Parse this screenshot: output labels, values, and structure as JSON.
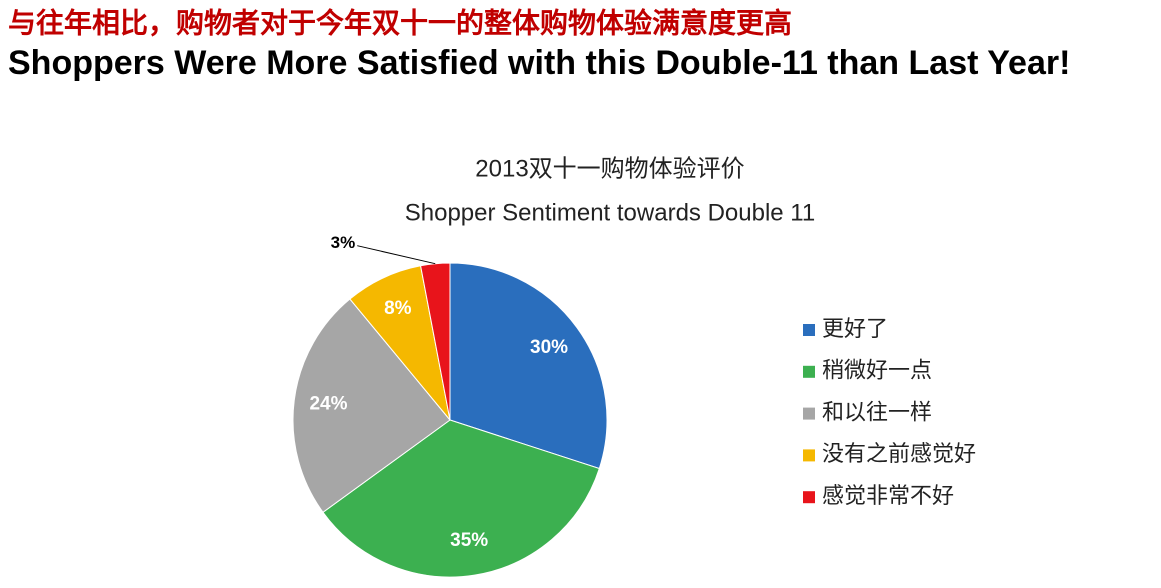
{
  "headline": {
    "zh": "与往年相比，购物者对于今年双十一的整体购物体验满意度更高",
    "en": "Shoppers Were More Satisfied with this Double-11 than Last Year!"
  },
  "chart_data": {
    "type": "pie",
    "title": "2013双十一购物体验评价",
    "subtitle": "Shopper Sentiment towards Double 11",
    "categories": [
      "更好了",
      "稍微好一点",
      "和以往一样",
      "没有之前感觉好",
      "感觉非常不好"
    ],
    "values": [
      30,
      35,
      24,
      8,
      3
    ],
    "value_labels": [
      "30%",
      "35%",
      "24%",
      "8%",
      "3%"
    ],
    "colors": [
      "#2a6ebd",
      "#3cb050",
      "#a6a6a6",
      "#f5b800",
      "#e8141b"
    ],
    "legend": "right"
  }
}
